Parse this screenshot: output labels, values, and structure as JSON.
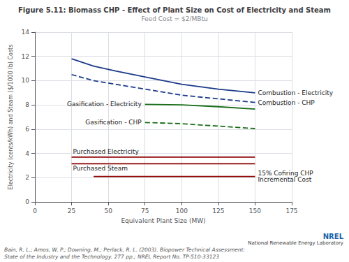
{
  "chart_data": {
    "type": "line",
    "title": "Figure 5.11: Biomass CHP - Effect of Plant Size on Cost of Electricity and Steam",
    "subtitle": "Feed Cost = $2/MBtu",
    "xlabel": "Equivalent Plant Size (MW)",
    "ylabel": "Electricity (cents/kWh) and Steam ($/1000 lb) Costs",
    "xlim": [
      0,
      175
    ],
    "ylim": [
      0,
      14
    ],
    "xticks": [
      0,
      25,
      50,
      75,
      100,
      125,
      150,
      175
    ],
    "yticks": [
      0,
      2,
      4,
      6,
      8,
      10,
      12,
      14
    ],
    "grid": true,
    "series": [
      {
        "name": "Combustion - Electricity",
        "color": "#1a3a8a",
        "line_style": "solid",
        "x": [
          25,
          40,
          55,
          75,
          100,
          125,
          150
        ],
        "values": [
          11.8,
          11.2,
          10.8,
          10.3,
          9.7,
          9.3,
          9.0
        ]
      },
      {
        "name": "Combustion - CHP",
        "color": "#1a3a8a",
        "line_style": "dashed",
        "x": [
          25,
          40,
          55,
          75,
          100,
          125,
          150
        ],
        "values": [
          10.5,
          10.0,
          9.7,
          9.3,
          8.8,
          8.5,
          8.2
        ]
      },
      {
        "name": "Gasification - Electricity",
        "color": "#1a6e1a",
        "line_style": "solid",
        "x": [
          75,
          100,
          125,
          150
        ],
        "values": [
          8.05,
          8.0,
          7.85,
          7.65
        ]
      },
      {
        "name": "Gasification - CHP",
        "color": "#1a6e1a",
        "line_style": "dashed",
        "x": [
          75,
          100,
          125,
          150
        ],
        "values": [
          6.55,
          6.45,
          6.25,
          6.05
        ]
      },
      {
        "name": "Purchased Electricity",
        "color": "#8b0000",
        "line_style": "solid",
        "x": [
          25,
          150
        ],
        "values": [
          3.7,
          3.7
        ]
      },
      {
        "name": "Purchased Steam",
        "color": "#8b0000",
        "line_style": "solid",
        "x": [
          25,
          150
        ],
        "values": [
          3.15,
          3.15
        ]
      },
      {
        "name": "15% Cofiring CHP\nIncremental Cost",
        "color": "#8b0000",
        "line_style": "solid",
        "x": [
          40,
          150
        ],
        "values": [
          2.1,
          2.1
        ]
      }
    ],
    "source": "Bain, R. L.; Amos, W. P.; Downing, M.; Perlack, R. L. (2003). Biopower Technical Assessment:\nState of the Industry and the Technology. 277 pp.; NREL Report No. TP-510-33123",
    "annotations": [
      "NREL",
      "National Renewable Energy Laboratory"
    ]
  }
}
